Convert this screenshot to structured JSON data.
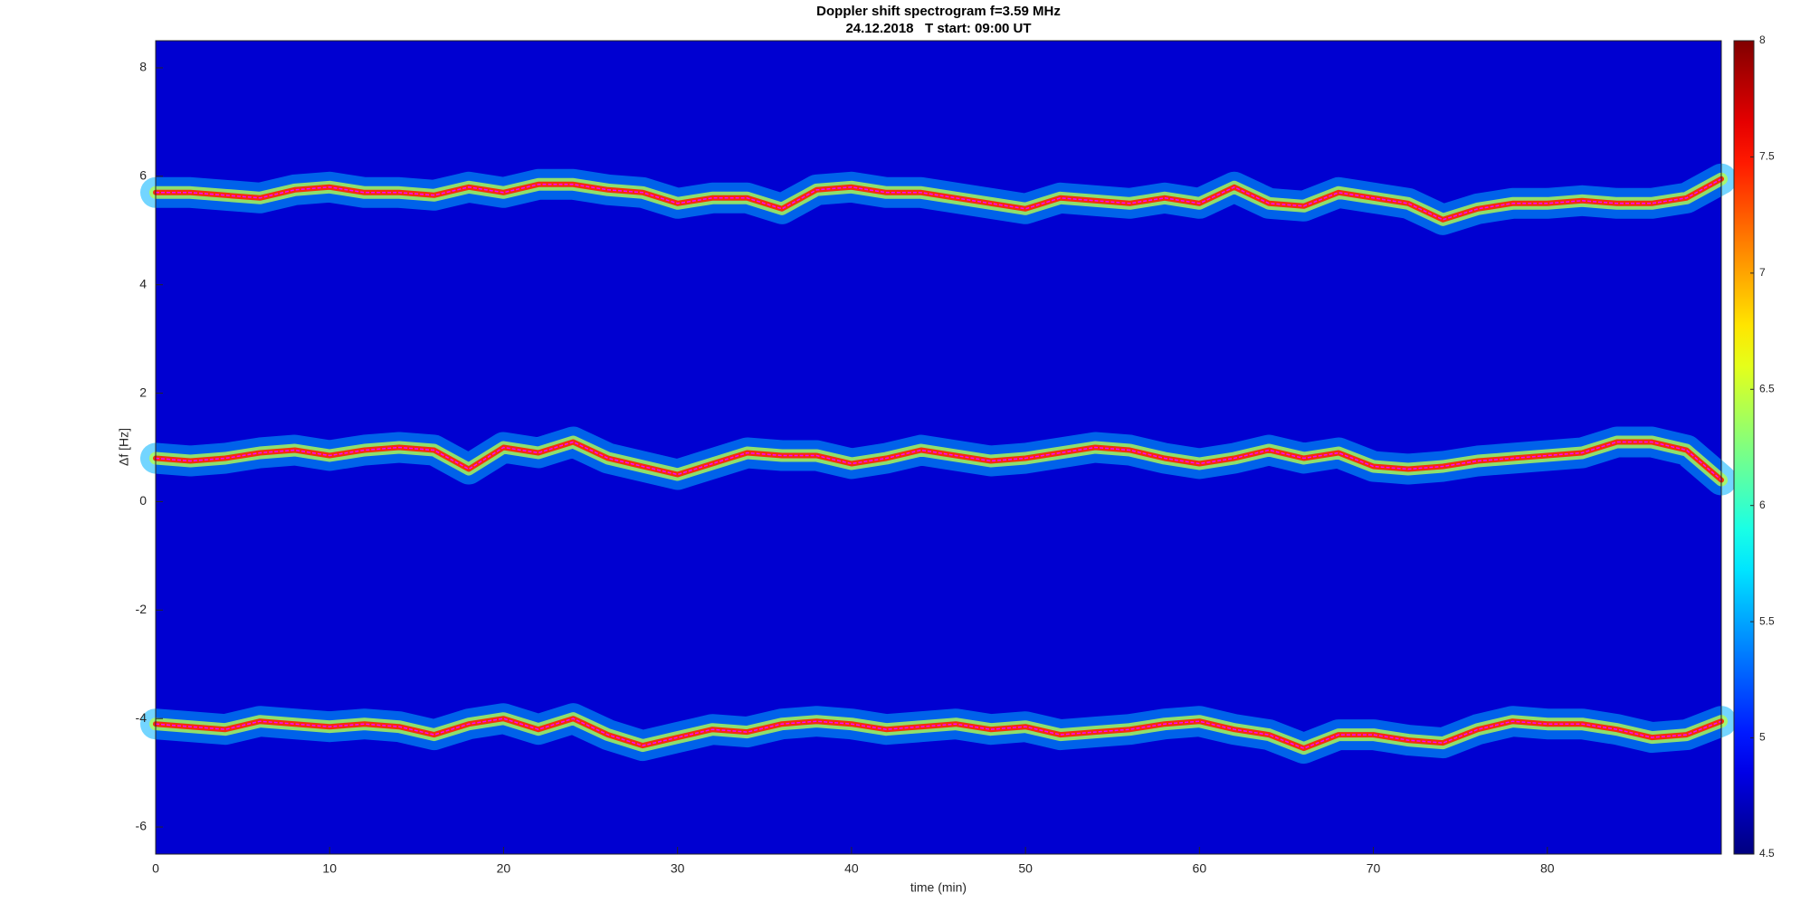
{
  "chart_data": {
    "type": "spectrogram",
    "title": "Doppler shift spectrogram f=3.59 MHz",
    "subtitle": "24.12.2018   T start: 09:00 UT",
    "xlabel": "time (min)",
    "ylabel": "Δf [Hz]",
    "x": [
      0,
      2,
      4,
      6,
      8,
      10,
      12,
      14,
      16,
      18,
      20,
      22,
      24,
      26,
      28,
      30,
      32,
      34,
      36,
      38,
      40,
      42,
      44,
      46,
      48,
      50,
      52,
      54,
      56,
      58,
      60,
      62,
      64,
      66,
      68,
      70,
      72,
      74,
      76,
      78,
      80,
      82,
      84,
      86,
      88,
      90
    ],
    "series": [
      {
        "color": "#ff00ff",
        "values": [
          5.7,
          5.7,
          5.65,
          5.6,
          5.75,
          5.8,
          5.7,
          5.7,
          5.65,
          5.8,
          5.7,
          5.85,
          5.85,
          5.75,
          5.7,
          5.5,
          5.6,
          5.6,
          5.4,
          5.75,
          5.8,
          5.7,
          5.7,
          5.6,
          5.5,
          5.4,
          5.6,
          5.55,
          5.5,
          5.6,
          5.5,
          5.8,
          5.5,
          5.45,
          5.7,
          5.6,
          5.5,
          5.2,
          5.4,
          5.5,
          5.5,
          5.55,
          5.5,
          5.5,
          5.6,
          5.95
        ]
      },
      {
        "color": "#ff00ff",
        "values": [
          0.8,
          0.75,
          0.8,
          0.9,
          0.95,
          0.85,
          0.95,
          1.0,
          0.95,
          0.6,
          1.0,
          0.9,
          1.1,
          0.8,
          0.65,
          0.5,
          0.7,
          0.9,
          0.85,
          0.85,
          0.7,
          0.8,
          0.95,
          0.85,
          0.75,
          0.8,
          0.9,
          1.0,
          0.95,
          0.8,
          0.7,
          0.8,
          0.95,
          0.8,
          0.9,
          0.65,
          0.6,
          0.65,
          0.75,
          0.8,
          0.85,
          0.9,
          1.1,
          1.1,
          0.95,
          0.4
        ]
      },
      {
        "color": "#ff00ff",
        "values": [
          -4.1,
          -4.15,
          -4.2,
          -4.05,
          -4.1,
          -4.15,
          -4.1,
          -4.15,
          -4.3,
          -4.1,
          -4.0,
          -4.2,
          -4.0,
          -4.3,
          -4.5,
          -4.35,
          -4.2,
          -4.25,
          -4.1,
          -4.05,
          -4.1,
          -4.2,
          -4.15,
          -4.1,
          -4.2,
          -4.15,
          -4.3,
          -4.25,
          -4.2,
          -4.1,
          -4.05,
          -4.2,
          -4.3,
          -4.55,
          -4.3,
          -4.3,
          -4.4,
          -4.45,
          -4.2,
          -4.05,
          -4.1,
          -4.1,
          -4.2,
          -4.35,
          -4.3,
          -4.05
        ]
      }
    ],
    "xlim": [
      0,
      90
    ],
    "xticks": [
      0,
      10,
      20,
      30,
      40,
      50,
      60,
      70,
      80
    ],
    "ylim": [
      -6.5,
      8.5
    ],
    "yticks": [
      -6,
      -4,
      -2,
      0,
      2,
      4,
      6,
      8
    ],
    "colormap": "jet",
    "clim": [
      4.5,
      8
    ],
    "cticks": [
      4.5,
      5,
      5.5,
      6,
      6.5,
      7,
      7.5,
      8
    ]
  }
}
